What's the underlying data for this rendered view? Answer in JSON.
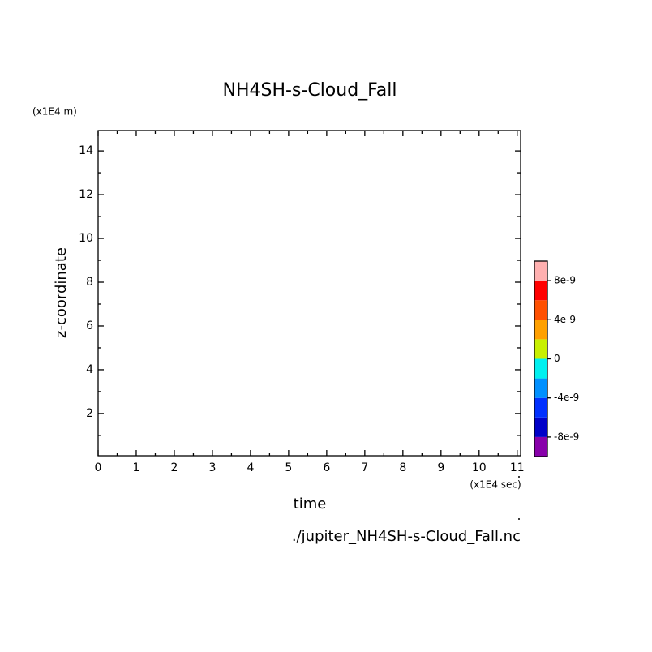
{
  "chart_data": {
    "type": "contour",
    "title": "NH4SH-s-Cloud_Fall",
    "xlabel": "time",
    "ylabel": "z-coordinate",
    "xunit": "(x1E4 sec)",
    "yunit": "(x1E4 m)",
    "source": "./jupiter_NH4SH-s-Cloud_Fall.nc",
    "xlim": [
      0,
      11.09
    ],
    "xticks": [
      0,
      1,
      2,
      3,
      4,
      5,
      6,
      7,
      8,
      9,
      10,
      11
    ],
    "ylim": [
      0.07,
      14.93
    ],
    "yticks": [
      2,
      4,
      6,
      8,
      10,
      12,
      14
    ],
    "colorbar": {
      "levels": [
        -1e-08,
        -8e-09,
        -6e-09,
        -4e-09,
        -2e-09,
        0,
        2e-09,
        4e-09,
        6e-09,
        8e-09,
        1e-08
      ],
      "colors": [
        "#8800aa",
        "#0000c8",
        "#0030ff",
        "#0090ff",
        "#00f0f0",
        "#c8f000",
        "#ffa000",
        "#ff5000",
        "#ff0000",
        "#ffb0b0"
      ],
      "ticks": [
        {
          "value": -8e-09,
          "label": "-8e-9"
        },
        {
          "value": -4e-09,
          "label": "-4e-9"
        },
        {
          "value": 0,
          "label": "0"
        },
        {
          "value": 4e-09,
          "label": "4e-9"
        },
        {
          "value": 8e-09,
          "label": "8e-9"
        }
      ]
    }
  }
}
